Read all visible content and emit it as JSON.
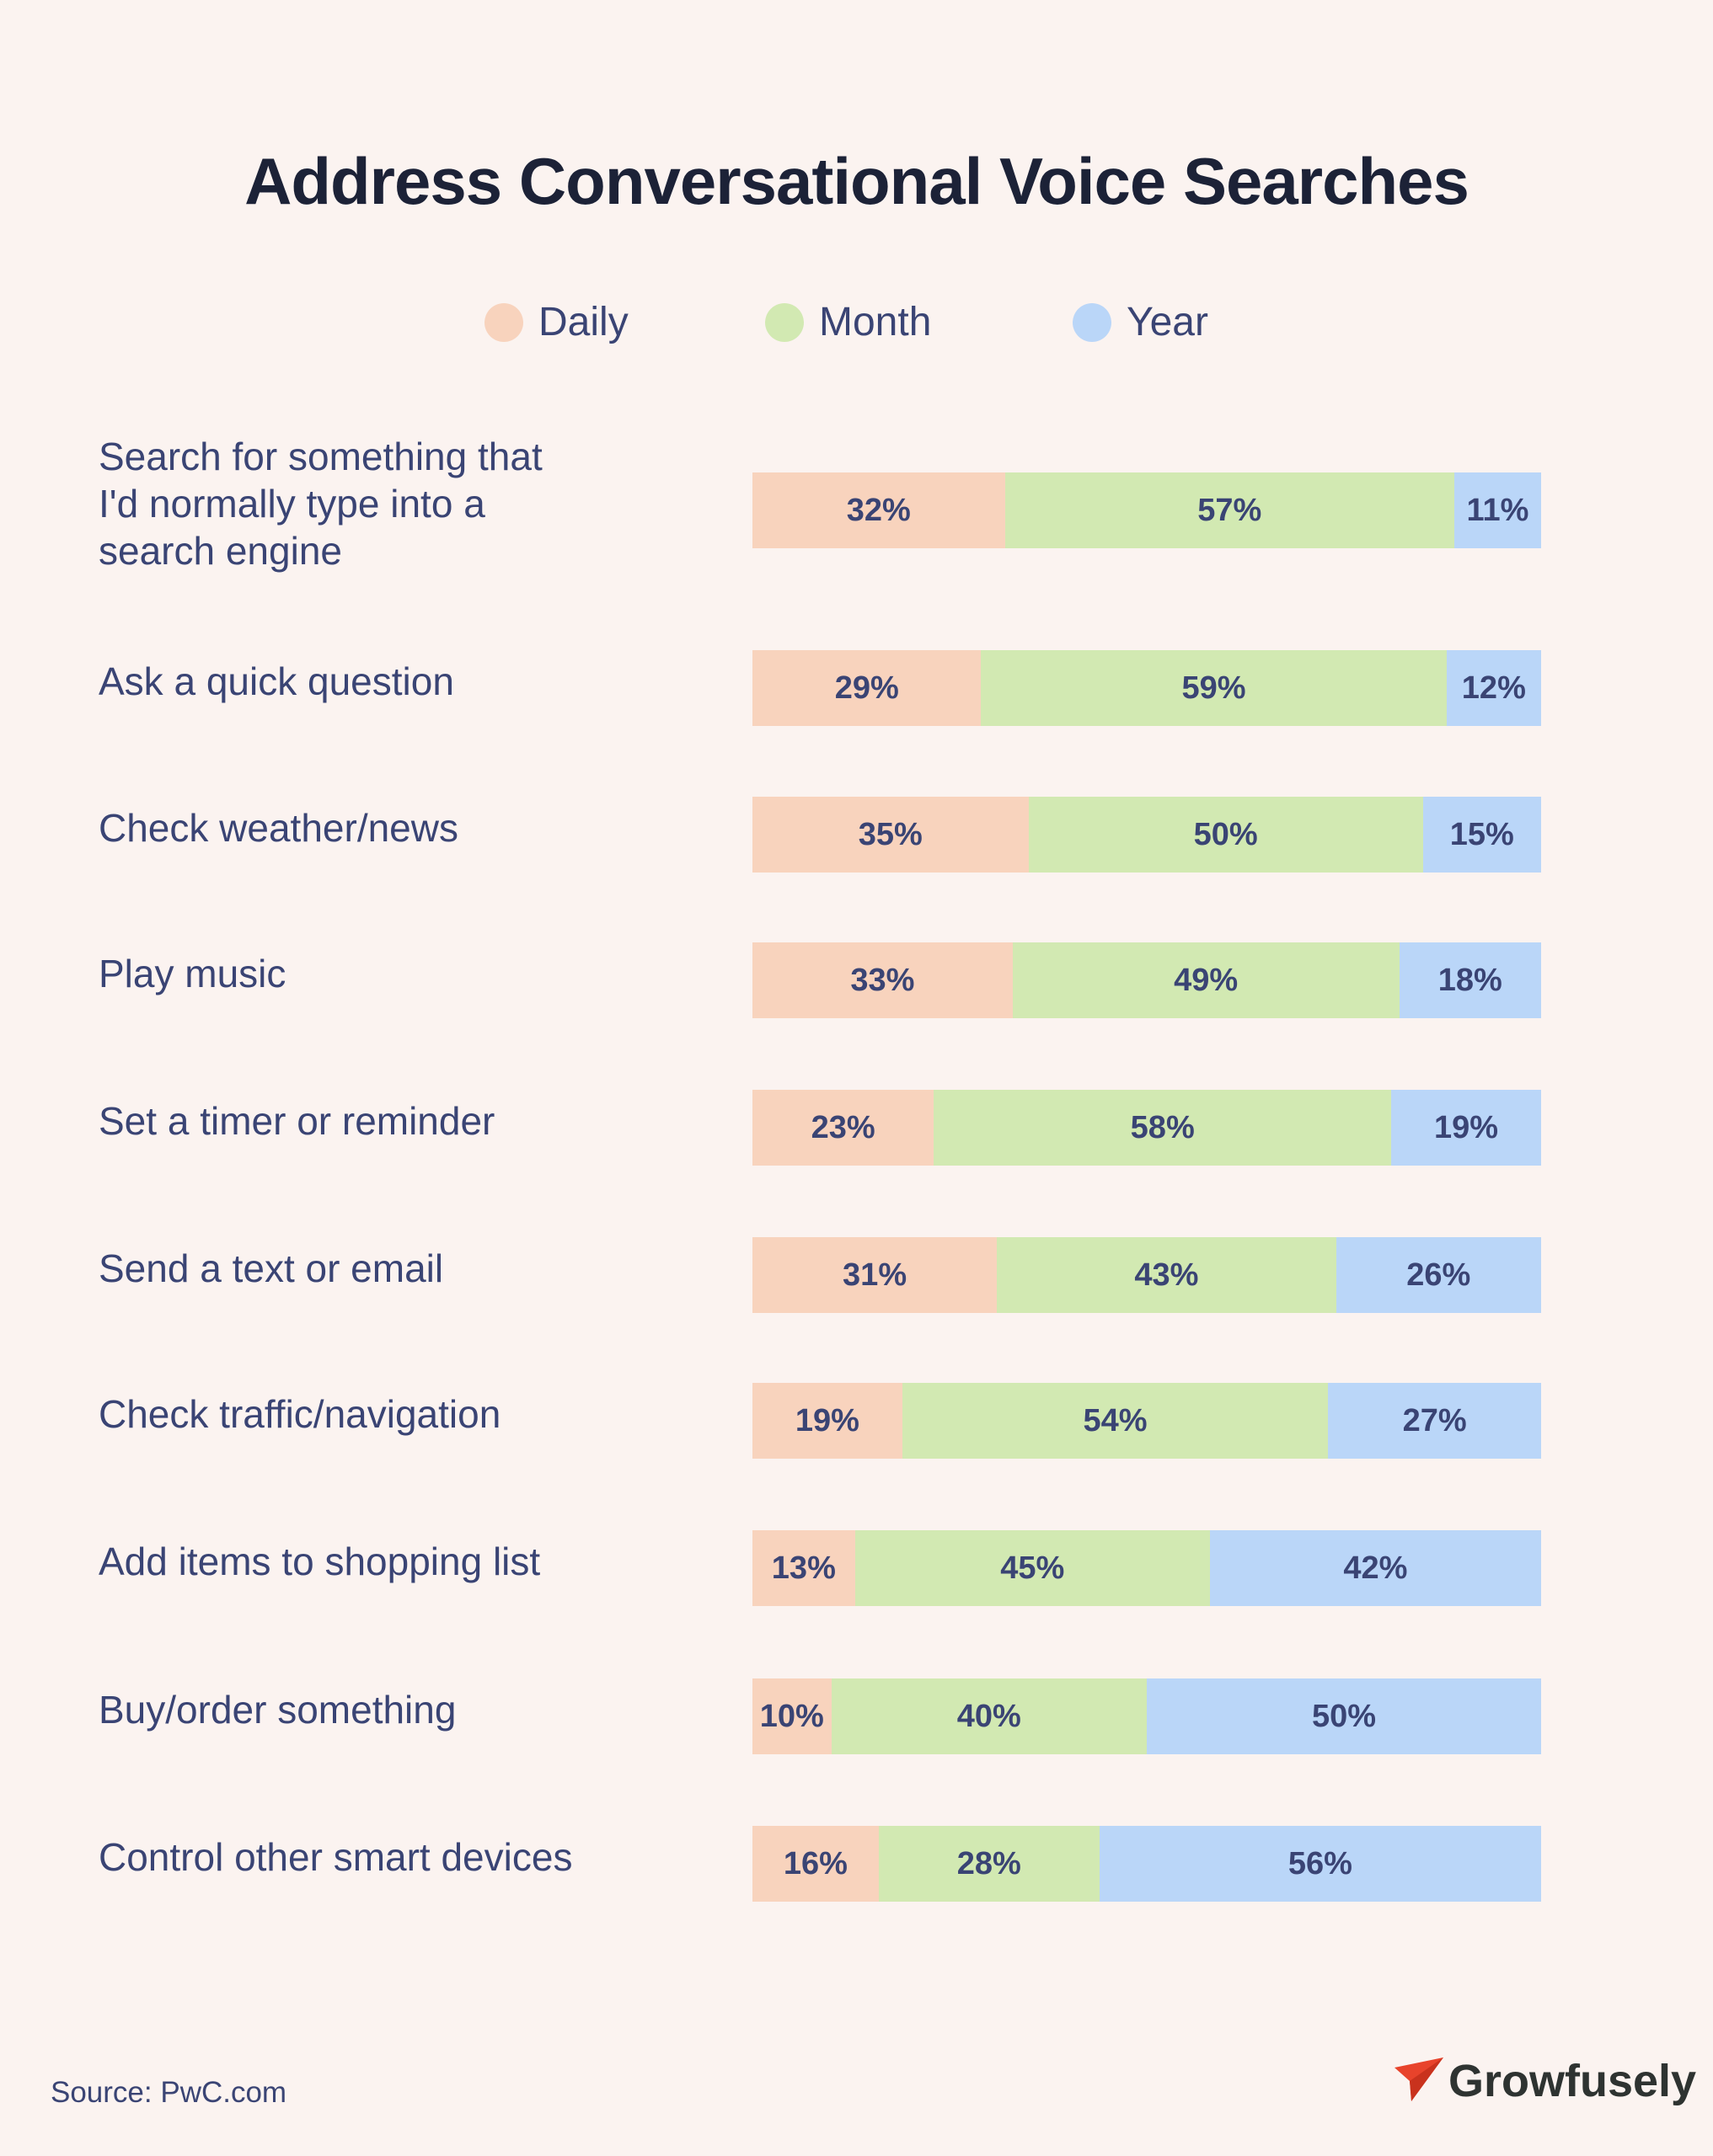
{
  "chart_data": {
    "type": "bar",
    "orientation": "horizontal",
    "stacked": true,
    "title": "Address Conversational Voice Searches",
    "xlabel": "",
    "ylabel": "",
    "legend_position": "top",
    "categories": [
      "Search for something that I'd normally type into a search engine",
      "Ask a quick question",
      "Check weather/news",
      "Play music",
      "Set a timer or reminder",
      "Send a text or email",
      "Check traffic/navigation",
      "Add items to shopping list",
      "Buy/order something",
      "Control other smart devices"
    ],
    "category_lines": [
      [
        "Search for something that",
        "I'd normally type into a",
        "search engine"
      ],
      [
        "Ask a quick question"
      ],
      [
        "Check weather/news"
      ],
      [
        "Play music"
      ],
      [
        "Set a timer or reminder"
      ],
      [
        "Send a text or email"
      ],
      [
        "Check traffic/navigation"
      ],
      [
        "Add items to shopping list"
      ],
      [
        "Buy/order something"
      ],
      [
        "Control other smart devices"
      ]
    ],
    "series": [
      {
        "name": "Daily",
        "color": "#f8d3bd",
        "values": [
          32,
          29,
          35,
          33,
          23,
          31,
          19,
          13,
          10,
          16
        ]
      },
      {
        "name": "Month",
        "color": "#d2e9b2",
        "values": [
          57,
          59,
          50,
          49,
          58,
          43,
          54,
          45,
          40,
          28
        ]
      },
      {
        "name": "Year",
        "color": "#bad6f8",
        "values": [
          11,
          12,
          15,
          18,
          19,
          26,
          27,
          42,
          50,
          56
        ]
      }
    ],
    "value_suffix": "%",
    "xlim": [
      0,
      100
    ]
  },
  "footer": {
    "source": "Source: PwC.com",
    "brand": "Growfusely",
    "brand_accent": "#e8432b"
  }
}
